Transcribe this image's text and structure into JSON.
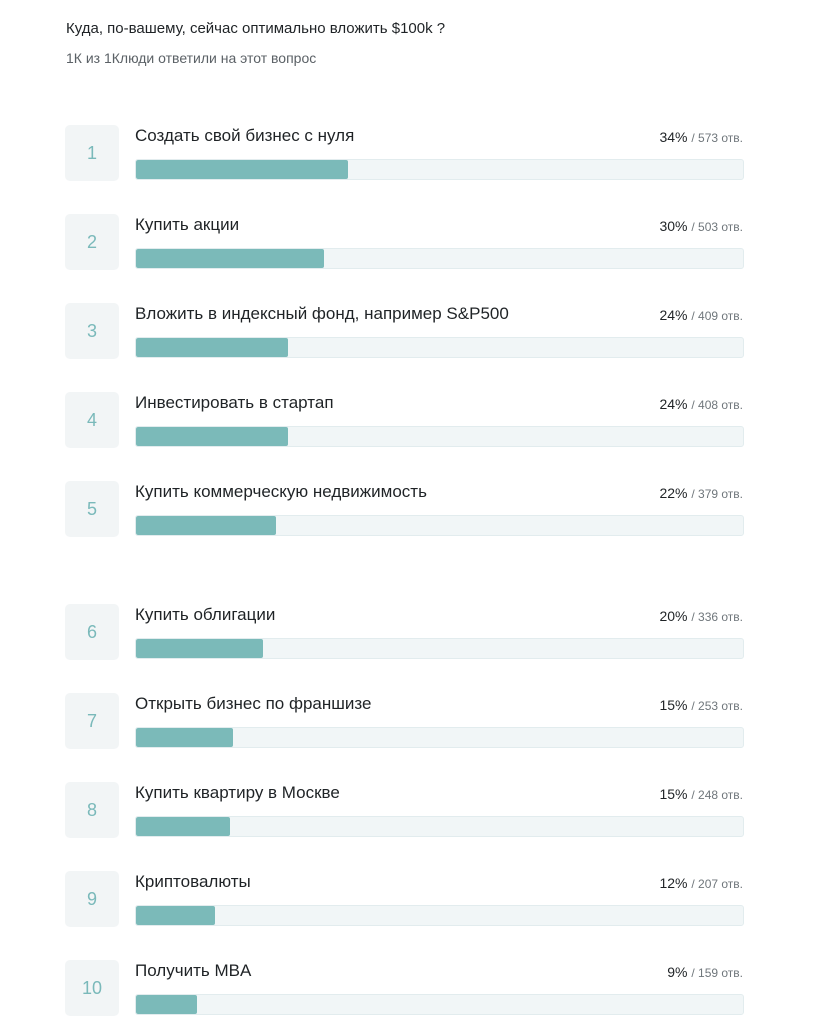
{
  "question": "Куда, по-вашему, сейчас оптимально вложить $100k ?",
  "meta": "1К из 1Клюди ответили на этот вопрос",
  "colors": {
    "bar_fill": "#7bbab9",
    "bar_track": "#f1f6f7",
    "number": "#7ab9ba"
  },
  "options": [
    {
      "num": "1",
      "label": "Создать свой бизнес с нуля",
      "pct": "34%",
      "count": "/ 573 отв.",
      "share": 0.35
    },
    {
      "num": "2",
      "label": "Купить акции",
      "pct": "30%",
      "count": "/ 503 отв.",
      "share": 0.31
    },
    {
      "num": "3",
      "label": "Вложить в индексный фонд, например S&P500",
      "pct": "24%",
      "count": "/ 409 отв.",
      "share": 0.25
    },
    {
      "num": "4",
      "label": "Инвестировать в стартап",
      "pct": "24%",
      "count": "/ 408 отв.",
      "share": 0.25
    },
    {
      "num": "5",
      "label": "Купить коммерческую недвижимость",
      "pct": "22%",
      "count": "/ 379 отв.",
      "share": 0.23
    },
    {
      "num": "6",
      "label": "Купить облигации",
      "pct": "20%",
      "count": "/ 336 отв.",
      "share": 0.21
    },
    {
      "num": "7",
      "label": "Открыть бизнес по франшизе",
      "pct": "15%",
      "count": "/ 253 отв.",
      "share": 0.16
    },
    {
      "num": "8",
      "label": "Купить квартиру в Москве",
      "pct": "15%",
      "count": "/ 248 отв.",
      "share": 0.155
    },
    {
      "num": "9",
      "label": "Криптовалюты",
      "pct": "12%",
      "count": "/ 207 отв.",
      "share": 0.13
    },
    {
      "num": "10",
      "label": "Получить MBA",
      "pct": "9%",
      "count": "/ 159 отв.",
      "share": 0.1
    }
  ]
}
